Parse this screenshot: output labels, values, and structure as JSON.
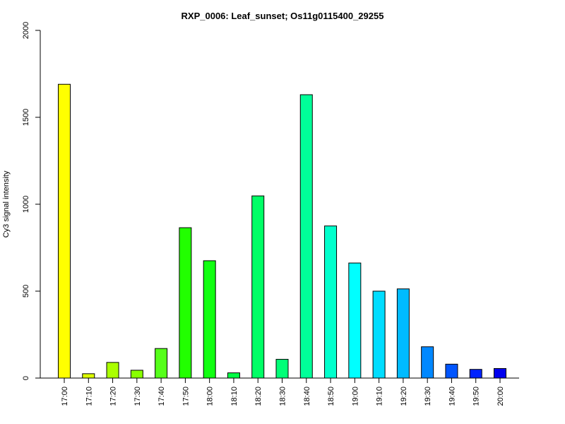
{
  "chart_data": {
    "type": "bar",
    "title": "RXP_0006: Leaf_sunset; Os11g0115400_29255",
    "xlabel": "",
    "ylabel": "Cy3 signal intensity",
    "ylim": [
      0,
      2000
    ],
    "yticks": [
      0,
      500,
      1000,
      1500,
      2000
    ],
    "grid": false,
    "categories": [
      "17:00",
      "17:10",
      "17:20",
      "17:30",
      "17:40",
      "17:50",
      "18:00",
      "18:10",
      "18:20",
      "18:30",
      "18:40",
      "18:50",
      "19:00",
      "19:10",
      "19:20",
      "19:30",
      "19:40",
      "19:50",
      "20:00"
    ],
    "values": [
      1690,
      25,
      90,
      45,
      170,
      865,
      675,
      30,
      1048,
      108,
      1630,
      875,
      662,
      500,
      513,
      180,
      80,
      50,
      55
    ],
    "colors": [
      "#FFFF00",
      "#DDFF00",
      "#AAFF00",
      "#88FF00",
      "#55FF1A",
      "#22FF00",
      "#11FF11",
      "#00FF44",
      "#00FF66",
      "#00FF77",
      "#00FF99",
      "#00FFCC",
      "#00FFFF",
      "#00DDFF",
      "#00BBFF",
      "#0088FF",
      "#0055FF",
      "#0022FF",
      "#0000EE"
    ]
  }
}
